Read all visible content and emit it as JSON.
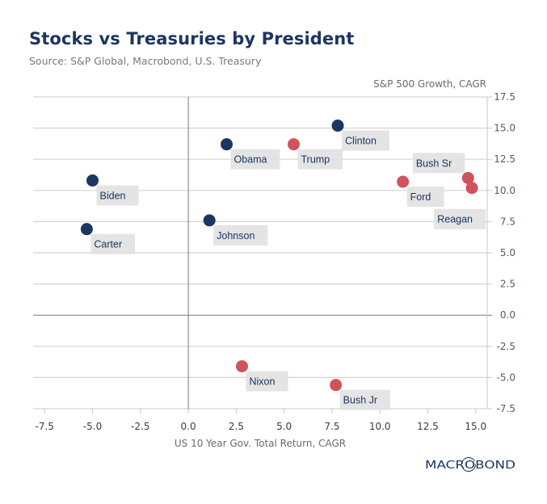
{
  "header": {
    "title": "Stocks vs Treasuries by President",
    "subtitle": "Source: S&P Global, Macrobond, U.S. Treasury"
  },
  "logo": {
    "text": "MACROBOND",
    "color": "#1c3661"
  },
  "colors": {
    "democrat": "#1c3661",
    "republican": "#d0535c",
    "label_bg": "#e2e2e2",
    "grid": "#d4d4d4",
    "zero_line": "#7a7a7a"
  },
  "chart_data": {
    "type": "scatter",
    "title": "Stocks vs Treasuries by President",
    "subtitle": "Source: S&P Global, Macrobond, U.S. Treasury",
    "xlabel": "US 10 Year Gov. Total Return, CAGR",
    "ylabel": "S&P 500 Growth, CAGR",
    "xlim": [
      -8.1,
      15.6
    ],
    "ylim": [
      -7.5,
      17.5
    ],
    "xticks": [
      -7.5,
      -5.0,
      -2.5,
      0.0,
      2.5,
      5.0,
      7.5,
      10.0,
      12.5,
      15.0
    ],
    "xtick_labels": [
      "-7.5",
      "-5.0",
      "-2.5",
      "0.0",
      "2.5",
      "5.0",
      "7.5",
      "10.0",
      "12.5",
      "15.0"
    ],
    "yticks": [
      17.5,
      15.0,
      12.5,
      10.0,
      7.5,
      5.0,
      2.5,
      0.0,
      -2.5,
      -5.0,
      -7.5
    ],
    "ytick_labels": [
      "17.5",
      "15.0",
      "12.5",
      "10.0",
      "7.5",
      "5.0",
      "2.5",
      "0.0",
      "-2.5",
      "-5.0",
      "-7.5"
    ],
    "yaxis_position": "right",
    "grid": "horizontal",
    "legend": "none",
    "points": [
      {
        "name": "Clinton",
        "x": 7.8,
        "y": 15.2,
        "party": "democrat",
        "label_pos": "below-right"
      },
      {
        "name": "Obama",
        "x": 2.0,
        "y": 13.7,
        "party": "democrat",
        "label_pos": "below-right"
      },
      {
        "name": "Trump",
        "x": 5.5,
        "y": 13.7,
        "party": "republican",
        "label_pos": "below-right"
      },
      {
        "name": "Bush Sr",
        "x": 14.6,
        "y": 11.0,
        "party": "republican",
        "label_pos": "above-left"
      },
      {
        "name": "Biden",
        "x": -5.0,
        "y": 10.8,
        "party": "democrat",
        "label_pos": "below-right"
      },
      {
        "name": "Ford",
        "x": 11.2,
        "y": 10.7,
        "party": "republican",
        "label_pos": "below-right"
      },
      {
        "name": "Reagan",
        "x": 14.8,
        "y": 10.2,
        "party": "republican",
        "label_pos": "below-left"
      },
      {
        "name": "Johnson",
        "x": 1.1,
        "y": 7.6,
        "party": "democrat",
        "label_pos": "below-right"
      },
      {
        "name": "Carter",
        "x": -5.3,
        "y": 6.9,
        "party": "democrat",
        "label_pos": "below-right"
      },
      {
        "name": "Nixon",
        "x": 2.8,
        "y": -4.1,
        "party": "republican",
        "label_pos": "below-right"
      },
      {
        "name": "Bush Jr",
        "x": 7.7,
        "y": -5.6,
        "party": "republican",
        "label_pos": "below-right"
      }
    ]
  }
}
